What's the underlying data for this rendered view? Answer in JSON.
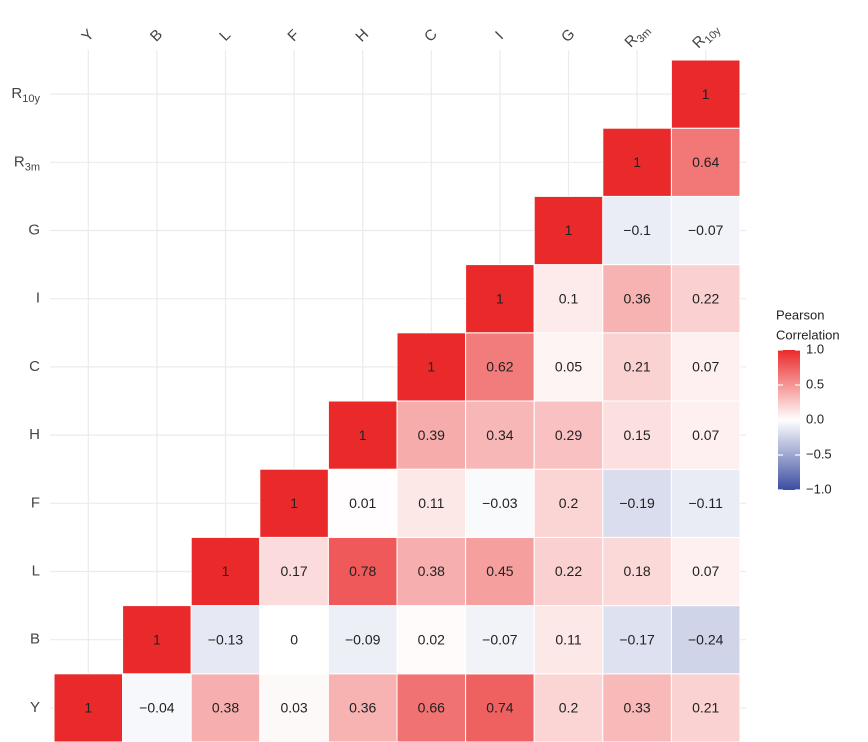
{
  "chart_data": {
    "type": "heatmap",
    "x_categories": [
      {
        "text": "Y"
      },
      {
        "text": "B"
      },
      {
        "text": "L"
      },
      {
        "text": "F"
      },
      {
        "text": "H"
      },
      {
        "text": "C"
      },
      {
        "text": "I"
      },
      {
        "text": "G"
      },
      {
        "text": "R",
        "sub": "3m"
      },
      {
        "text": "R",
        "sub": "10y"
      }
    ],
    "y_categories": [
      {
        "text": "Y"
      },
      {
        "text": "B"
      },
      {
        "text": "L"
      },
      {
        "text": "F"
      },
      {
        "text": "H"
      },
      {
        "text": "C"
      },
      {
        "text": "I"
      },
      {
        "text": "G"
      },
      {
        "text": "R",
        "sub": "3m"
      },
      {
        "text": "R",
        "sub": "10y"
      }
    ],
    "values": [
      [
        1,
        -0.04,
        0.38,
        0.03,
        0.36,
        0.66,
        0.74,
        0.2,
        0.33,
        0.21
      ],
      [
        null,
        1,
        -0.13,
        0,
        -0.09,
        0.02,
        -0.07,
        0.11,
        -0.17,
        -0.24
      ],
      [
        null,
        null,
        1,
        0.17,
        0.78,
        0.38,
        0.45,
        0.22,
        0.18,
        0.07
      ],
      [
        null,
        null,
        null,
        1,
        0.01,
        0.11,
        -0.03,
        0.2,
        -0.19,
        -0.11
      ],
      [
        null,
        null,
        null,
        null,
        1,
        0.39,
        0.34,
        0.29,
        0.15,
        0.07
      ],
      [
        null,
        null,
        null,
        null,
        null,
        1,
        0.62,
        0.05,
        0.21,
        0.07
      ],
      [
        null,
        null,
        null,
        null,
        null,
        null,
        1,
        0.1,
        0.36,
        0.22
      ],
      [
        null,
        null,
        null,
        null,
        null,
        null,
        null,
        1,
        -0.1,
        -0.07
      ],
      [
        null,
        null,
        null,
        null,
        null,
        null,
        null,
        null,
        1,
        0.64
      ],
      [
        null,
        null,
        null,
        null,
        null,
        null,
        null,
        null,
        null,
        1
      ]
    ],
    "value_labels": [
      [
        "1",
        "−0.04",
        "0.38",
        "0.03",
        "0.36",
        "0.66",
        "0.74",
        "0.2",
        "0.33",
        "0.21"
      ],
      [
        null,
        "1",
        "−0.13",
        "0",
        "−0.09",
        "0.02",
        "−0.07",
        "0.11",
        "−0.17",
        "−0.24"
      ],
      [
        null,
        null,
        "1",
        "0.17",
        "0.78",
        "0.38",
        "0.45",
        "0.22",
        "0.18",
        "0.07"
      ],
      [
        null,
        null,
        null,
        "1",
        "0.01",
        "0.11",
        "−0.03",
        "0.2",
        "−0.19",
        "−0.11"
      ],
      [
        null,
        null,
        null,
        null,
        "1",
        "0.39",
        "0.34",
        "0.29",
        "0.15",
        "0.07"
      ],
      [
        null,
        null,
        null,
        null,
        null,
        "1",
        "0.62",
        "0.05",
        "0.21",
        "0.07"
      ],
      [
        null,
        null,
        null,
        null,
        null,
        null,
        "1",
        "0.1",
        "0.36",
        "0.22"
      ],
      [
        null,
        null,
        null,
        null,
        null,
        null,
        null,
        "1",
        "−0.1",
        "−0.07"
      ],
      [
        null,
        null,
        null,
        null,
        null,
        null,
        null,
        null,
        "1",
        "0.64"
      ],
      [
        null,
        null,
        null,
        null,
        null,
        null,
        null,
        null,
        null,
        "1"
      ]
    ],
    "legend_title": [
      "Pearson",
      "Correlation"
    ],
    "colorlim": [
      -1,
      1
    ],
    "colors": {
      "low": "#3b4da0",
      "mid": "#ffffff",
      "high": "#ea2a2a"
    },
    "legend_ticks": [
      {
        "value": 1.0,
        "label": "1.0"
      },
      {
        "value": 0.5,
        "label": "0.5"
      },
      {
        "value": 0.0,
        "label": "0.0"
      },
      {
        "value": -0.5,
        "label": "−0.5"
      },
      {
        "value": -1.0,
        "label": "−1.0"
      }
    ],
    "grid": true,
    "legend_position": "right"
  }
}
